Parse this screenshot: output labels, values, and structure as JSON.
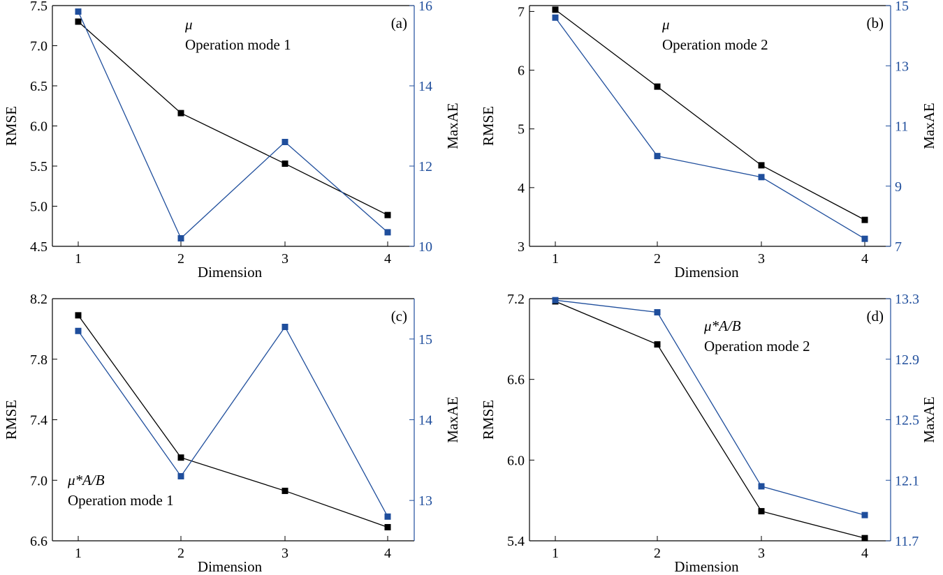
{
  "colors": {
    "rmse": "#000000",
    "maxae": "#1f4e9c"
  },
  "chart_data": [
    {
      "type": "line",
      "panel_label": "(a)",
      "annotation": [
        "μ",
        "Operation mode 1"
      ],
      "annotation_position": "top-center",
      "xlabel": "Dimension",
      "ylabel_left": "RMSE",
      "ylabel_right": "MaxAE",
      "x": [
        1,
        2,
        3,
        4
      ],
      "ylim_left": [
        4.5,
        7.5
      ],
      "yticks_left": [
        "4.5",
        "5.0",
        "5.5",
        "6.0",
        "6.5",
        "7.0",
        "7.5"
      ],
      "ylim_right": [
        10,
        16
      ],
      "yticks_right": [
        "10",
        "12",
        "14",
        "16"
      ],
      "series": [
        {
          "name": "RMSE",
          "axis": "left",
          "values": [
            7.3,
            6.16,
            5.53,
            4.89
          ]
        },
        {
          "name": "MaxAE",
          "axis": "right",
          "values": [
            15.85,
            10.2,
            12.6,
            10.35
          ]
        }
      ]
    },
    {
      "type": "line",
      "panel_label": "(b)",
      "annotation": [
        "μ",
        "Operation mode 2"
      ],
      "annotation_position": "top-center",
      "xlabel": "Dimension",
      "ylabel_left": "RMSE",
      "ylabel_right": "MaxAE",
      "x": [
        1,
        2,
        3,
        4
      ],
      "ylim_left": [
        3,
        7.1
      ],
      "yticks_left": [
        "3",
        "4",
        "5",
        "6",
        "7"
      ],
      "ylim_right": [
        7,
        15
      ],
      "yticks_right": [
        "7",
        "9",
        "11",
        "13",
        "15"
      ],
      "series": [
        {
          "name": "RMSE",
          "axis": "left",
          "values": [
            7.03,
            5.72,
            4.38,
            3.45
          ]
        },
        {
          "name": "MaxAE",
          "axis": "right",
          "values": [
            14.6,
            10.0,
            9.3,
            7.25
          ]
        }
      ]
    },
    {
      "type": "line",
      "panel_label": "(c)",
      "annotation": [
        "μ*A/B",
        "Operation mode 1"
      ],
      "annotation_position": "bottom-left",
      "xlabel": "Dimension",
      "ylabel_left": "RMSE",
      "ylabel_right": "MaxAE",
      "x": [
        1,
        2,
        3,
        4
      ],
      "ylim_left": [
        6.6,
        8.2
      ],
      "yticks_left": [
        "6.6",
        "7.0",
        "7.4",
        "7.8",
        "8.2"
      ],
      "ylim_right": [
        12.5,
        15.5
      ],
      "yticks_right": [
        "13",
        "14",
        "15"
      ],
      "series": [
        {
          "name": "RMSE",
          "axis": "left",
          "values": [
            8.09,
            7.15,
            6.93,
            6.69
          ]
        },
        {
          "name": "MaxAE",
          "axis": "right",
          "values": [
            15.1,
            13.3,
            15.15,
            12.8
          ]
        }
      ]
    },
    {
      "type": "line",
      "panel_label": "(d)",
      "annotation": [
        "μ*A/B",
        "Operation mode 2"
      ],
      "annotation_position": "top-center",
      "xlabel": "Dimension",
      "ylabel_left": "RMSE",
      "ylabel_right": "MaxAE",
      "x": [
        1,
        2,
        3,
        4
      ],
      "ylim_left": [
        5.4,
        7.2
      ],
      "yticks_left": [
        "5.4",
        "6.0",
        "6.6",
        "7.2"
      ],
      "ylim_right": [
        11.7,
        13.3
      ],
      "yticks_right": [
        "11.7",
        "12.1",
        "12.5",
        "12.9",
        "13.3"
      ],
      "series": [
        {
          "name": "RMSE",
          "axis": "left",
          "values": [
            7.18,
            6.86,
            5.62,
            5.42
          ]
        },
        {
          "name": "MaxAE",
          "axis": "right",
          "values": [
            13.29,
            13.21,
            12.06,
            11.87
          ]
        }
      ]
    }
  ]
}
